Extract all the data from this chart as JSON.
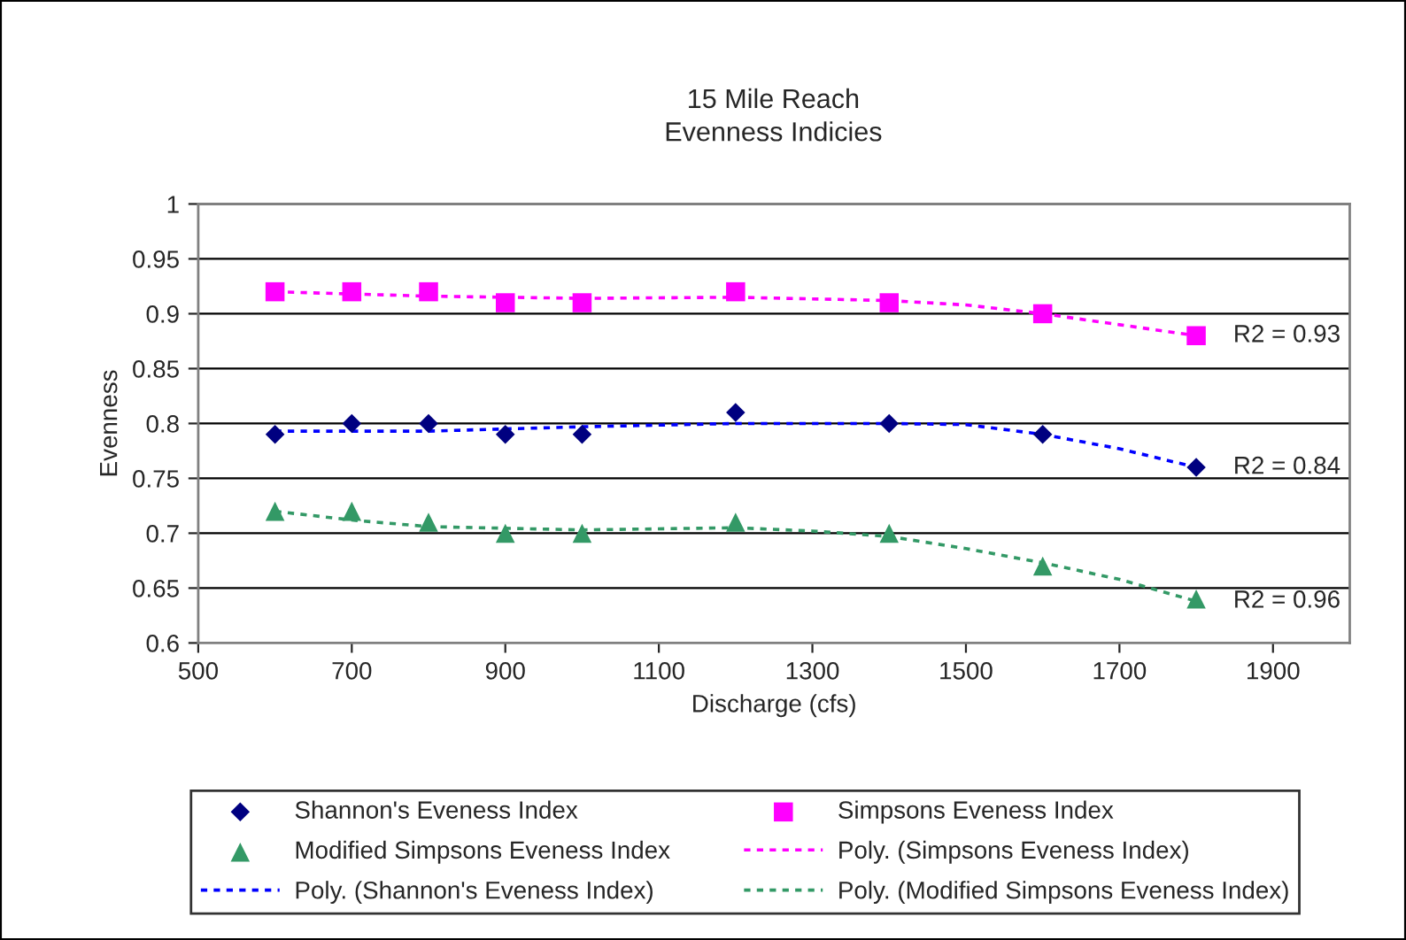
{
  "chart_data": {
    "type": "scatter",
    "title": "15 Mile Reach\nEvenness Indicies",
    "xlabel": "Discharge (cfs)",
    "ylabel": "Evenness",
    "x": [
      600,
      700,
      800,
      900,
      1000,
      1200,
      1400,
      1600,
      1800
    ],
    "series": [
      {
        "name": "Shannon's Eveness Index",
        "color": "#000080",
        "marker": "diamond",
        "values": [
          0.79,
          0.8,
          0.8,
          0.79,
          0.79,
          0.81,
          0.8,
          0.79,
          0.76
        ]
      },
      {
        "name": "Simpsons Eveness Index",
        "color": "#ff00ff",
        "marker": "square",
        "values": [
          0.92,
          0.92,
          0.92,
          0.91,
          0.91,
          0.92,
          0.91,
          0.9,
          0.88
        ]
      },
      {
        "name": "Modified Simpsons Eveness Index",
        "color": "#339966",
        "marker": "triangle",
        "values": [
          0.72,
          0.72,
          0.71,
          0.7,
          0.7,
          0.71,
          0.7,
          0.67,
          0.64
        ]
      },
      {
        "name": "Poly. (Simpsons Eveness Index)",
        "type": "line",
        "line_style": "dotted",
        "color": "#ff00ff",
        "x": [
          600,
          800,
          1000,
          1200,
          1400,
          1500,
          1600,
          1700,
          1800
        ],
        "values": [
          0.92,
          0.916,
          0.914,
          0.915,
          0.912,
          0.908,
          0.9,
          0.89,
          0.88
        ]
      },
      {
        "name": "Poly. (Shannon's Eveness Index)",
        "type": "line",
        "line_style": "dotted",
        "color": "#0000ff",
        "x": [
          600,
          800,
          1000,
          1200,
          1400,
          1500,
          1600,
          1700,
          1800
        ],
        "values": [
          0.793,
          0.793,
          0.797,
          0.8,
          0.8,
          0.799,
          0.79,
          0.777,
          0.76
        ]
      },
      {
        "name": "Poly. (Modified Simpsons Eveness Index)",
        "type": "line",
        "line_style": "dotted",
        "color": "#339966",
        "x": [
          600,
          700,
          800,
          1000,
          1200,
          1300,
          1400,
          1500,
          1600,
          1700,
          1800
        ],
        "values": [
          0.72,
          0.712,
          0.706,
          0.703,
          0.705,
          0.702,
          0.697,
          0.686,
          0.673,
          0.658,
          0.638
        ]
      }
    ],
    "annotations": [
      "R2 = 0.93",
      "R2 = 0.84",
      "R2 = 0.96"
    ],
    "xlim": [
      500,
      2000
    ],
    "xticks": [
      500,
      700,
      900,
      1100,
      1300,
      1500,
      1700,
      1900
    ],
    "ylim": [
      0.6,
      1
    ],
    "yticks": [
      0.6,
      0.65,
      0.7,
      0.75,
      0.8,
      0.85,
      0.9,
      0.95,
      1
    ],
    "grid": "y",
    "legend": "bottom"
  }
}
